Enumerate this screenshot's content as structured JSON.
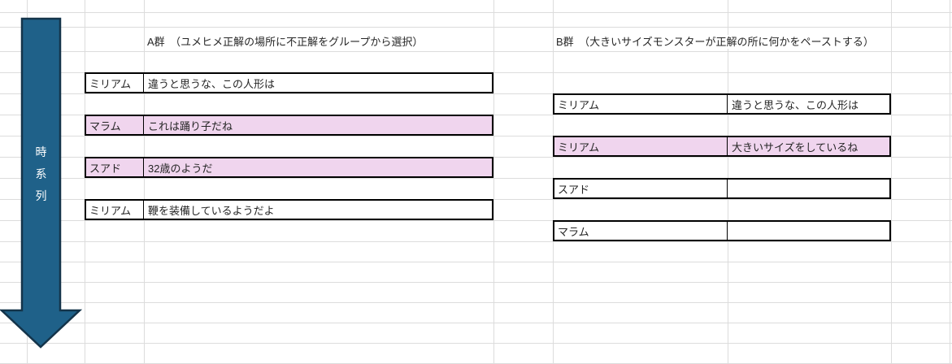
{
  "timeline": {
    "label": "時系列"
  },
  "group_a": {
    "title": "A群　（ユメヒメ正解の場所に不正解をグループから選択）",
    "rows": [
      {
        "speaker": "ミリアム",
        "text": "違うと思うな、この人形は",
        "highlight": false
      },
      {
        "speaker": "マラム",
        "text": "これは踊り子だね",
        "highlight": true
      },
      {
        "speaker": "スアド",
        "text": "32歳のようだ",
        "highlight": true
      },
      {
        "speaker": "ミリアム",
        "text": "鞭を装備しているようだよ",
        "highlight": false
      }
    ]
  },
  "group_b": {
    "title": "B群　（大きいサイズモンスターが正解の所に何かをペーストする）",
    "rows": [
      {
        "speaker": "ミリアム",
        "text": "違うと思うな、この人形は",
        "highlight": false
      },
      {
        "speaker": "ミリアム",
        "text": "大きいサイズをしているね",
        "highlight": true
      },
      {
        "speaker": "スアド",
        "text": "",
        "highlight": false
      },
      {
        "speaker": "マラム",
        "text": "",
        "highlight": false
      }
    ]
  },
  "colors": {
    "highlight_fill": "#f0d5ee",
    "arrow_fill": "#1f6189",
    "arrow_stroke": "#14344a",
    "gridline": "#dcdcdc",
    "table_border": "#000000"
  }
}
